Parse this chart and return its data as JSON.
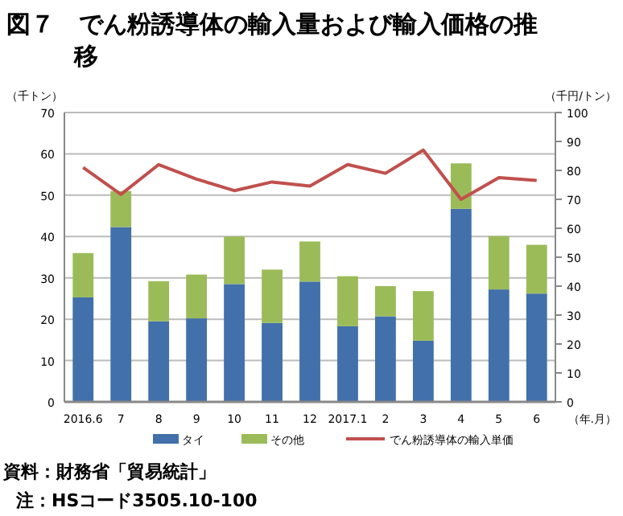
{
  "chart_data": {
    "type": "bar",
    "title": "図７　でん粉誘導体の輸入量および輸入価格の推移",
    "ylabel": "（千トン）",
    "y2label": "（千円/トン）",
    "xlabel": "（年.月）",
    "categories": [
      "2016.6",
      "7",
      "8",
      "9",
      "10",
      "11",
      "12",
      "2017.1",
      "2",
      "3",
      "4",
      "5",
      "6"
    ],
    "stacked": true,
    "series": [
      {
        "name": "タイ",
        "color": "#4270aa",
        "values": [
          25.3,
          42.3,
          19.5,
          20.2,
          28.5,
          19.1,
          29.1,
          18.3,
          20.7,
          14.8,
          46.7,
          27.2,
          26.2
        ]
      },
      {
        "name": "その他",
        "color": "#9bbb59",
        "values": [
          10.7,
          8.7,
          9.7,
          10.6,
          11.5,
          12.9,
          9.7,
          12.1,
          7.3,
          12.0,
          11.0,
          12.9,
          11.8
        ]
      },
      {
        "name": "でん粉誘導体の輸入単価",
        "type": "line",
        "axis": "y2",
        "color": "#c0504d",
        "values": [
          81,
          71.7,
          82,
          77,
          73,
          76,
          74.6,
          82,
          79,
          87,
          70,
          77.5,
          76.5
        ]
      }
    ],
    "ylim": [
      0,
      70
    ],
    "yticks": [
      0,
      10,
      20,
      30,
      40,
      50,
      60,
      70
    ],
    "y2lim": [
      0,
      100
    ],
    "y2ticks": [
      0,
      10,
      20,
      30,
      40,
      50,
      60,
      70,
      80,
      90,
      100
    ],
    "grid": "y",
    "legend": "bottom",
    "marker": "none",
    "annotations": [
      "資料：財務省「貿易統計」",
      "注：HSコード3505.10-100"
    ]
  }
}
